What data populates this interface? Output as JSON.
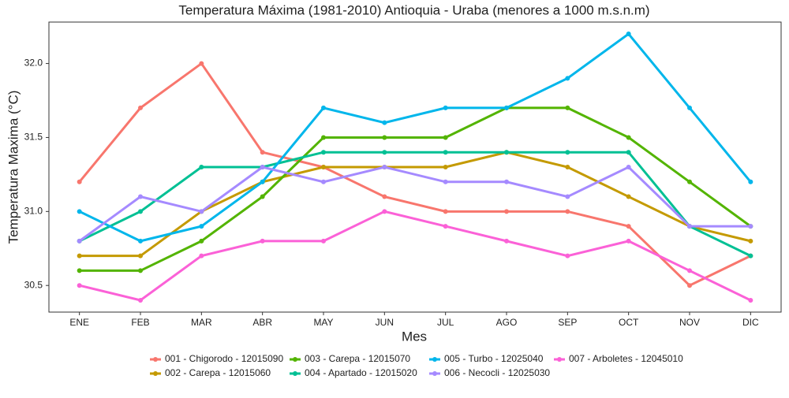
{
  "chart_data": {
    "type": "line",
    "title": "Temperatura Máxima (1981-2010) Antioquia - Uraba (menores a 1000 m.s.n.m)",
    "x_label": "Mes",
    "y_label": "Temperatura Maxima (°C)",
    "categories": [
      "ENE",
      "FEB",
      "MAR",
      "ABR",
      "MAY",
      "JUN",
      "JUL",
      "AGO",
      "SEP",
      "OCT",
      "NOV",
      "DIC"
    ],
    "ylim": [
      30.32,
      32.28
    ],
    "yticks": [
      30.5,
      {
        "value": 31,
        "label": "31.0"
      },
      31.5,
      {
        "value": 32,
        "label": "32.0"
      }
    ],
    "grid": false,
    "series": [
      {
        "name": "001 - Chigorodo - 12015090",
        "color": "#F8766D",
        "values": [
          31.2,
          31.7,
          32.0,
          31.4,
          31.3,
          31.1,
          31.0,
          31.0,
          31.0,
          30.9,
          30.5,
          30.7
        ]
      },
      {
        "name": "002 - Carepa - 12015060",
        "color": "#C49A00",
        "values": [
          30.7,
          30.7,
          31.0,
          31.2,
          31.3,
          31.3,
          31.3,
          31.4,
          31.3,
          31.1,
          30.9,
          30.8
        ]
      },
      {
        "name": "003 - Carepa - 12015070",
        "color": "#53B400",
        "values": [
          30.6,
          30.6,
          30.8,
          31.1,
          31.5,
          31.5,
          31.5,
          31.7,
          31.7,
          31.5,
          31.2,
          30.9
        ]
      },
      {
        "name": "004 - Apartado - 12015020",
        "color": "#00C094",
        "values": [
          30.8,
          31.0,
          31.3,
          31.3,
          31.4,
          31.4,
          31.4,
          31.4,
          31.4,
          31.4,
          30.9,
          30.7
        ]
      },
      {
        "name": "005 - Turbo - 12025040",
        "color": "#00B6EB",
        "values": [
          31.0,
          30.8,
          30.9,
          31.2,
          31.7,
          31.6,
          31.7,
          31.7,
          31.9,
          32.2,
          31.7,
          31.2
        ]
      },
      {
        "name": "006 - Necocli - 12025030",
        "color": "#A58AFF",
        "values": [
          30.8,
          31.1,
          31.0,
          31.3,
          31.2,
          31.3,
          31.2,
          31.2,
          31.1,
          31.3,
          30.9,
          30.9
        ]
      },
      {
        "name": "007 - Arboletes - 12045010",
        "color": "#FB61D7",
        "values": [
          30.5,
          30.4,
          30.7,
          30.8,
          30.8,
          31.0,
          30.9,
          30.8,
          30.7,
          30.8,
          30.6,
          30.4
        ]
      }
    ]
  }
}
